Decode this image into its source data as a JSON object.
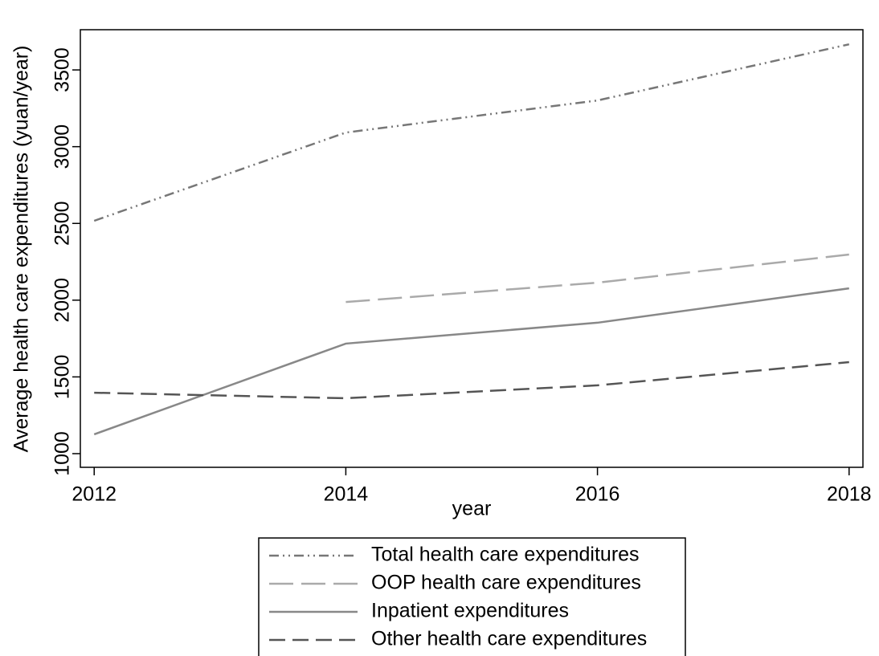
{
  "chart_data": {
    "type": "line",
    "xlabel": "year",
    "ylabel": "Average health care expenditures (yuan/year)",
    "x": [
      2012,
      2014,
      2016,
      2018
    ],
    "xlim": [
      2011.89,
      2018.11
    ],
    "xticks": [
      2012,
      2014,
      2016,
      2018
    ],
    "ylim": [
      911,
      3762
    ],
    "yticks": [
      1000,
      1500,
      2000,
      2500,
      3000,
      3500
    ],
    "series": [
      {
        "name": "Total health care expenditures",
        "color": "#777777",
        "dash": "12 5 2 5 2 5",
        "values": [
          2517,
          3092,
          3301,
          3667
        ]
      },
      {
        "name": "OOP health care expenditures",
        "color": "#aaaaaa",
        "dash": "30 10",
        "values": [
          null,
          1988,
          2114,
          2297
        ]
      },
      {
        "name": "Inpatient expenditures",
        "color": "#888888",
        "dash": "none",
        "values": [
          1126,
          1717,
          1853,
          2077
        ]
      },
      {
        "name": "Other health care expenditures",
        "color": "#555555",
        "dash": "20 9",
        "values": [
          1397,
          1361,
          1445,
          1596
        ]
      }
    ],
    "legend": "bottom"
  }
}
